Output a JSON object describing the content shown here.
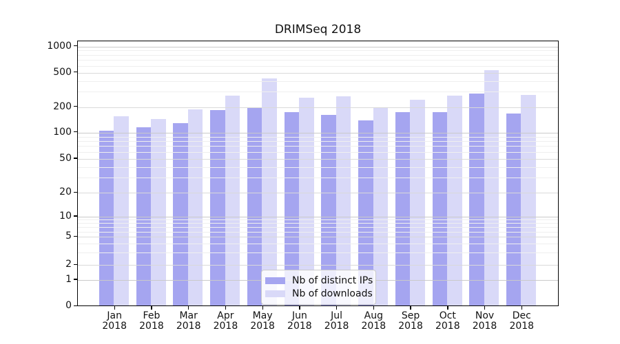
{
  "title": "DRIMSeq 2018",
  "colors": {
    "distinct_ips": "#a5a5f0",
    "downloads": "#d9d9f8",
    "grid_major": "#c9c9c9",
    "grid_minor": "#efefef",
    "axis": "#000000"
  },
  "chart_data": {
    "type": "bar",
    "title": "DRIMSeq 2018",
    "categories": [
      "Jan",
      "Feb",
      "Mar",
      "Apr",
      "May",
      "Jun",
      "Jul",
      "Aug",
      "Sep",
      "Oct",
      "Nov",
      "Dec"
    ],
    "year_label": "2018",
    "series": [
      {
        "name": "Nb of distinct IPs",
        "color": "#a5a5f0",
        "values": [
          106,
          115,
          128,
          184,
          199,
          173,
          160,
          140,
          173,
          173,
          288,
          168
        ]
      },
      {
        "name": "Nb of downloads",
        "color": "#d9d9f8",
        "values": [
          155,
          145,
          186,
          270,
          430,
          255,
          265,
          200,
          243,
          270,
          530,
          275
        ]
      }
    ],
    "xlabel": "",
    "ylabel": "",
    "yscale": "pseudo-log",
    "yticks": [
      0,
      1,
      2,
      5,
      10,
      20,
      50,
      100,
      200,
      500,
      1000
    ],
    "ylim": [
      0,
      1000
    ],
    "grid": true,
    "legend_position": "bottom-center"
  }
}
